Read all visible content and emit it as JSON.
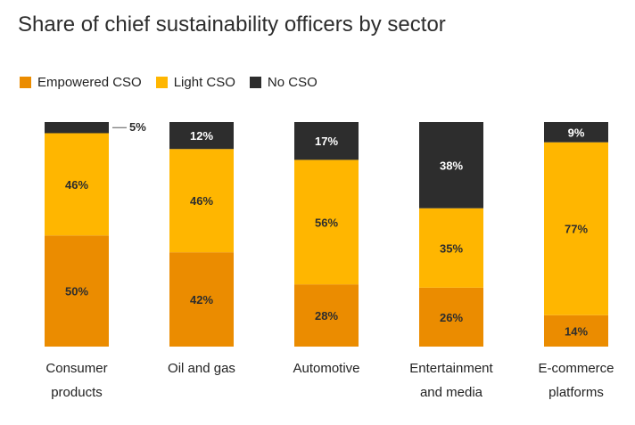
{
  "chart_data": {
    "type": "bar",
    "stacked": true,
    "percent": true,
    "title": "Share of chief sustainability officers by sector",
    "categories": [
      [
        "Consumer",
        "products"
      ],
      [
        "Oil and gas"
      ],
      [
        "Automotive"
      ],
      [
        "Entertainment",
        "and media"
      ],
      [
        "E-commerce",
        "platforms"
      ]
    ],
    "series": [
      {
        "name": "Empowered CSO",
        "color": "#eb8c00",
        "values": [
          50,
          42,
          28,
          26,
          14
        ]
      },
      {
        "name": "Light CSO",
        "color": "#ffb600",
        "values": [
          46,
          46,
          56,
          35,
          77
        ]
      },
      {
        "name": "No CSO",
        "color": "#2d2d2d",
        "values": [
          5,
          12,
          17,
          38,
          9
        ]
      }
    ],
    "value_suffix": "%",
    "ylim": [
      0,
      100
    ],
    "grid": false,
    "legend_position": "top-left",
    "label_colors": {
      "dark_segment": "#ffffff",
      "light_segment": "#2d2d2d",
      "callout": "#2d2d2d"
    }
  }
}
